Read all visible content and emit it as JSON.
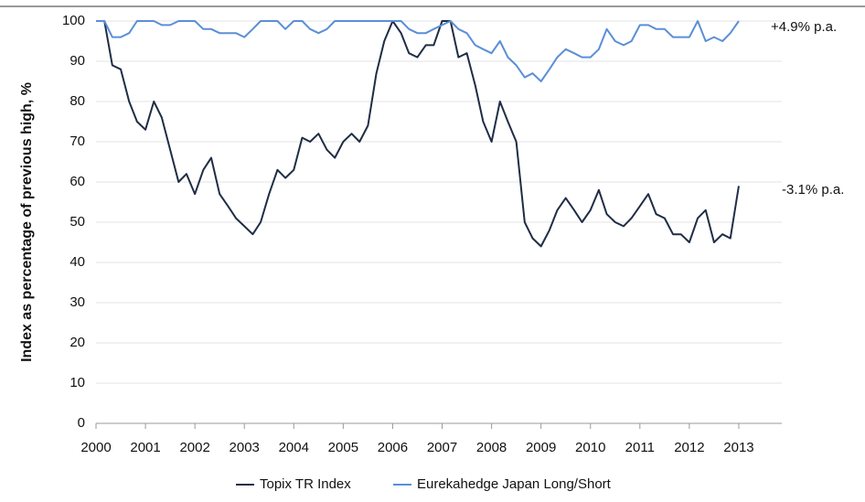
{
  "chart_data": {
    "type": "line",
    "ylabel": "Index as percentage of previous high, %",
    "annotations": [
      "+4.9% p.a.",
      "-3.1% p.a."
    ],
    "x": [
      2000,
      2000.17,
      2000.33,
      2000.5,
      2000.67,
      2000.83,
      2001,
      2001.17,
      2001.33,
      2001.5,
      2001.67,
      2001.83,
      2002,
      2002.17,
      2002.33,
      2002.5,
      2002.67,
      2002.83,
      2003,
      2003.17,
      2003.33,
      2003.5,
      2003.67,
      2003.83,
      2004,
      2004.17,
      2004.33,
      2004.5,
      2004.67,
      2004.83,
      2005,
      2005.17,
      2005.33,
      2005.5,
      2005.67,
      2005.83,
      2006,
      2006.17,
      2006.33,
      2006.5,
      2006.67,
      2006.83,
      2007,
      2007.17,
      2007.33,
      2007.5,
      2007.67,
      2007.83,
      2008,
      2008.17,
      2008.33,
      2008.5,
      2008.67,
      2008.83,
      2009,
      2009.17,
      2009.33,
      2009.5,
      2009.67,
      2009.83,
      2010,
      2010.17,
      2010.33,
      2010.5,
      2010.67,
      2010.83,
      2011,
      2011.17,
      2011.33,
      2011.5,
      2011.67,
      2011.83,
      2012,
      2012.17,
      2012.33,
      2012.5,
      2012.67,
      2012.83,
      2013
    ],
    "series": [
      {
        "name": "Topix TR Index",
        "color": "#1f2d45",
        "values": [
          100,
          100,
          89,
          88,
          80,
          75,
          73,
          80,
          76,
          68,
          60,
          62,
          57,
          63,
          66,
          57,
          54,
          51,
          49,
          47,
          50,
          57,
          63,
          61,
          63,
          71,
          70,
          72,
          68,
          66,
          70,
          72,
          70,
          74,
          87,
          95,
          100,
          97,
          92,
          91,
          94,
          94,
          100,
          100,
          91,
          92,
          84,
          75,
          70,
          80,
          75,
          70,
          50,
          46,
          44,
          48,
          53,
          56,
          53,
          50,
          53,
          58,
          52,
          50,
          49,
          51,
          54,
          57,
          52,
          51,
          47,
          47,
          45,
          51,
          53,
          45,
          47,
          46,
          59
        ]
      },
      {
        "name": "Eurekahedge Japan Long/Short",
        "color": "#5b8fd6",
        "values": [
          100,
          100,
          96,
          96,
          97,
          100,
          100,
          100,
          99,
          99,
          100,
          100,
          100,
          98,
          98,
          97,
          97,
          97,
          96,
          98,
          100,
          100,
          100,
          98,
          100,
          100,
          98,
          97,
          98,
          100,
          100,
          100,
          100,
          100,
          100,
          100,
          100,
          100,
          98,
          97,
          97,
          98,
          99,
          100,
          98,
          97,
          94,
          93,
          92,
          95,
          91,
          89,
          86,
          87,
          85,
          88,
          91,
          93,
          92,
          91,
          91,
          93,
          98,
          95,
          94,
          95,
          99,
          99,
          98,
          98,
          96,
          96,
          96,
          100,
          95,
          96,
          95,
          97,
          100
        ]
      }
    ],
    "xlim": [
      2000,
      2013.87
    ],
    "xticks": [
      2000,
      2001,
      2002,
      2003,
      2004,
      2005,
      2006,
      2007,
      2008,
      2009,
      2010,
      2011,
      2012,
      2013
    ],
    "ylim": [
      0,
      100
    ],
    "yticks": [
      0,
      10,
      20,
      30,
      40,
      50,
      60,
      70,
      80,
      90,
      100
    ],
    "grid": true,
    "legend": "bottom"
  }
}
